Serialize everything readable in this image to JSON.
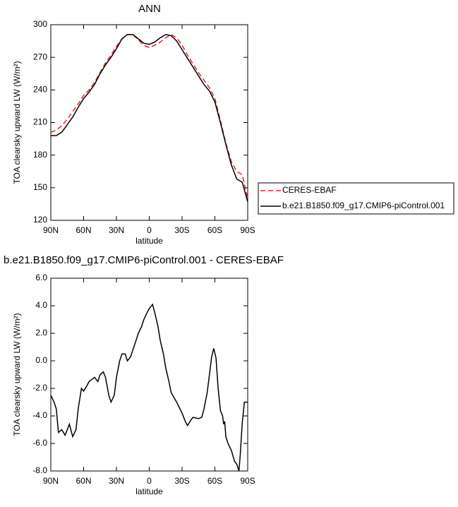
{
  "chart_data": [
    {
      "type": "line",
      "title": "ANN",
      "xlabel": "latitude",
      "ylabel": "TOA clearsky upward LW (W/m²)",
      "x": [
        90,
        85,
        80,
        75,
        70,
        65,
        60,
        55,
        50,
        45,
        40,
        35,
        30,
        25,
        20,
        15,
        10,
        5,
        0,
        -5,
        -10,
        -15,
        -20,
        -25,
        -30,
        -35,
        -40,
        -45,
        -50,
        -55,
        -60,
        -65,
        -70,
        -75,
        -80,
        -85,
        -90
      ],
      "series": [
        {
          "name": "CERES-EBAF",
          "color": "#e8202a",
          "dashed": true,
          "values": [
            201,
            203,
            207,
            213,
            220,
            227,
            235,
            240,
            247,
            256,
            265,
            272,
            280,
            287,
            291,
            291,
            286,
            281,
            279,
            281,
            284,
            288,
            291,
            288,
            281,
            272,
            264,
            256,
            249,
            242,
            232,
            212,
            191,
            174,
            165,
            162,
            140
          ]
        },
        {
          "name": "b.e21.B1850.f09_g17.CMIP6-piControl.001",
          "color": "#000000",
          "dashed": false,
          "values": [
            198,
            198,
            201,
            208,
            215,
            224,
            232,
            238,
            245,
            255,
            263,
            270,
            278,
            287,
            291,
            291,
            287,
            283,
            282,
            284,
            288,
            291,
            290,
            285,
            277,
            269,
            261,
            253,
            245,
            239,
            229,
            210,
            190,
            171,
            158,
            155,
            137
          ]
        }
      ],
      "xlim": [
        90,
        -90
      ],
      "xticks": [
        {
          "value": 90,
          "label": "90N"
        },
        {
          "value": 60,
          "label": "60N"
        },
        {
          "value": 30,
          "label": "30N"
        },
        0,
        {
          "value": -30,
          "label": "30S"
        },
        {
          "value": -60,
          "label": "60S"
        },
        {
          "value": -90,
          "label": "90S"
        }
      ],
      "ylim": [
        120,
        300
      ],
      "yticks": [
        120,
        150,
        180,
        210,
        240,
        270,
        300
      ],
      "legend": "right"
    },
    {
      "type": "line",
      "title": "b.e21.B1850.f09_g17.CMIP6-piControl.001 - CERES-EBAF",
      "xlabel": "latitude",
      "ylabel": "TOA clearsky upward LW (W/m²)",
      "x": [
        90,
        87,
        85,
        83,
        80,
        77,
        75,
        73,
        70,
        67,
        65,
        62,
        60,
        57,
        55,
        50,
        47,
        45,
        42,
        40,
        37,
        35,
        32,
        30,
        27,
        25,
        22,
        20,
        17,
        15,
        12,
        10,
        7,
        5,
        2,
        0,
        -3,
        -5,
        -8,
        -10,
        -13,
        -15,
        -18,
        -20,
        -25,
        -30,
        -33,
        -35,
        -38,
        -40,
        -45,
        -48,
        -50,
        -53,
        -55,
        -57,
        -59,
        -61,
        -63,
        -65,
        -67,
        -68,
        -69,
        -70,
        -72,
        -75,
        -78,
        -80,
        -82,
        -83,
        -85,
        -87,
        -90
      ],
      "values": [
        -2.5,
        -3,
        -3.5,
        -5.2,
        -5,
        -5.4,
        -5,
        -4.6,
        -5.5,
        -5,
        -3.5,
        -2,
        -2.2,
        -1.8,
        -1.5,
        -1.2,
        -1.5,
        -1,
        -0.8,
        -1.2,
        -2.5,
        -3,
        -2.5,
        -1.2,
        0,
        0.5,
        0.5,
        0,
        0.3,
        0.8,
        1.5,
        2,
        2.5,
        3,
        3.5,
        3.8,
        4.1,
        3.5,
        2.5,
        1.5,
        0.5,
        -0.5,
        -1.5,
        -2.3,
        -3,
        -3.8,
        -4.4,
        -4.7,
        -4.3,
        -4.1,
        -4.2,
        -4.1,
        -3.5,
        -2.3,
        -1,
        0.3,
        0.9,
        0.2,
        -2,
        -3.6,
        -4,
        -4.6,
        -4.4,
        -5.5,
        -6,
        -6.5,
        -7.3,
        -7.5,
        -8,
        -7,
        -4.5,
        -3,
        -3
      ],
      "color": "#000000",
      "xlim": [
        90,
        -90
      ],
      "xticks": [
        {
          "value": 90,
          "label": "90N"
        },
        {
          "value": 60,
          "label": "60N"
        },
        {
          "value": 30,
          "label": "30N"
        },
        0,
        {
          "value": -30,
          "label": "30S"
        },
        {
          "value": -60,
          "label": "60S"
        },
        {
          "value": -90,
          "label": "90S"
        }
      ],
      "ylim": [
        -8,
        6
      ],
      "yticks": [
        {
          "value": -8,
          "label": "-8.0"
        },
        {
          "value": -6,
          "label": "-6.0"
        },
        {
          "value": -4,
          "label": "-4.0"
        },
        {
          "value": -2,
          "label": "-2.0"
        },
        {
          "value": 0,
          "label": "0.0"
        },
        {
          "value": 2,
          "label": "2.0"
        },
        {
          "value": 4,
          "label": "4.0"
        },
        {
          "value": 6,
          "label": "6.0"
        }
      ]
    }
  ]
}
